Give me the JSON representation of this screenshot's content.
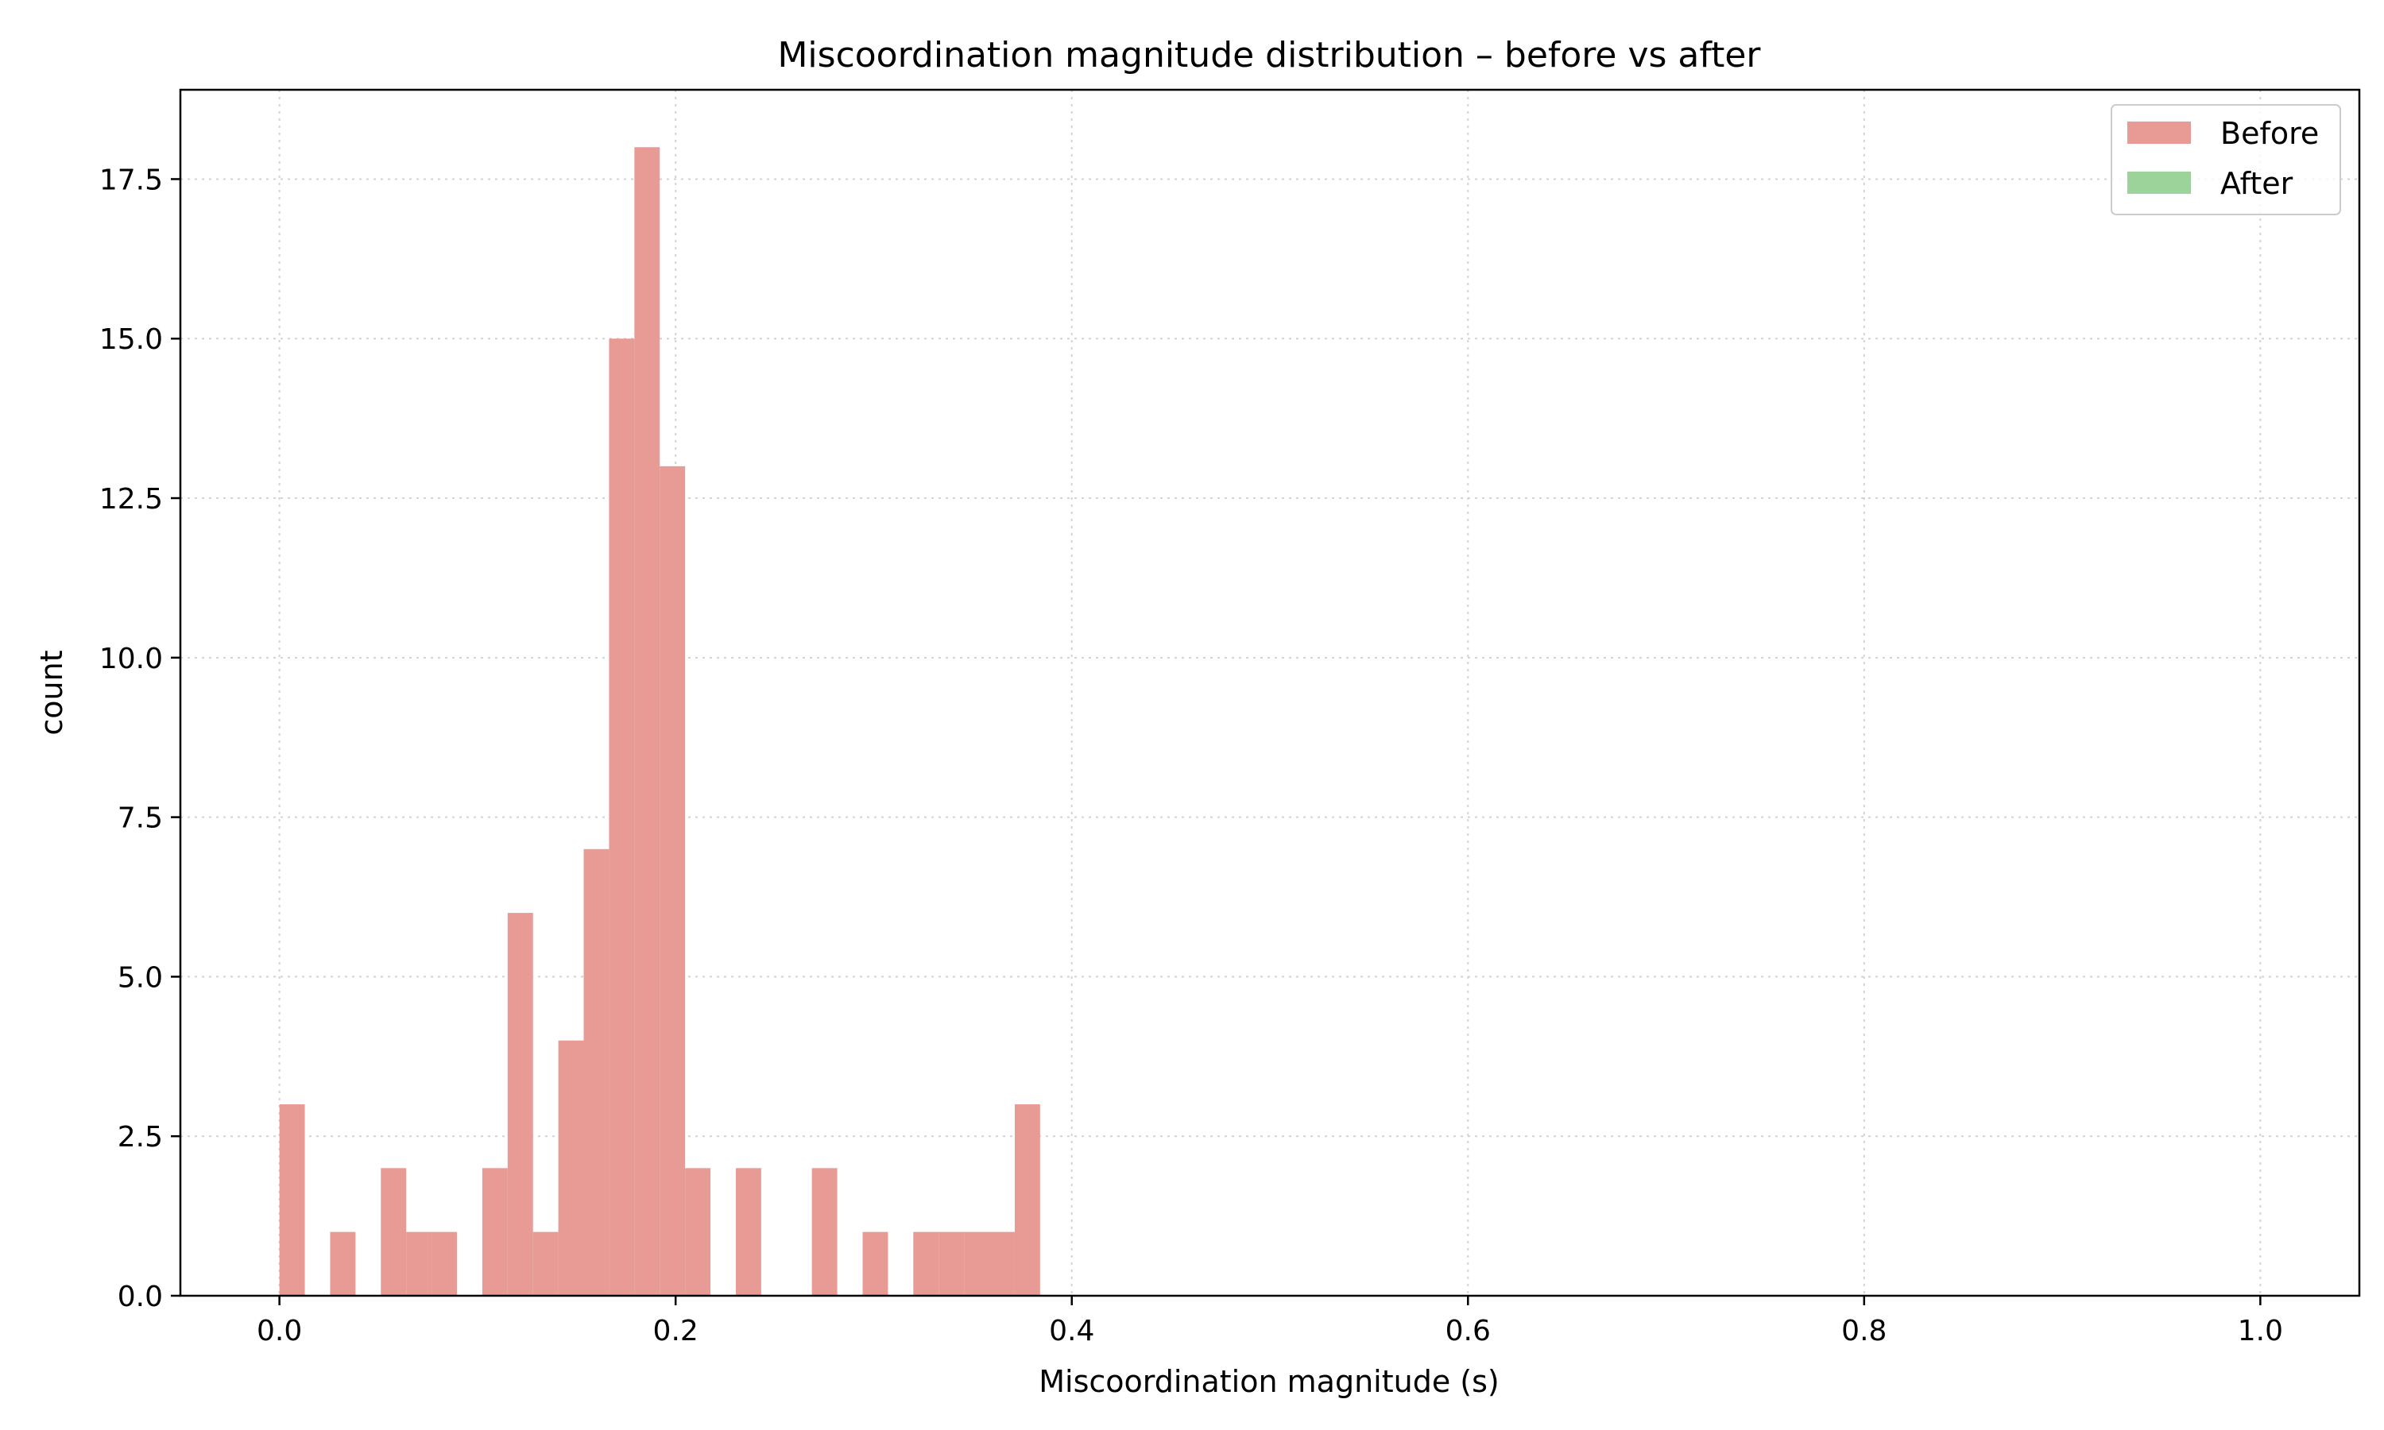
{
  "chart_data": {
    "type": "bar",
    "title": "Miscoordination magnitude distribution – before vs after",
    "xlabel": "Miscoordination magnitude (s)",
    "ylabel": "count",
    "xlim": [
      -0.05,
      1.05
    ],
    "ylim": [
      0,
      18.9
    ],
    "xticks": [
      0.0,
      0.2,
      0.4,
      0.6,
      0.8,
      1.0
    ],
    "xtick_labels": [
      "0.0",
      "0.2",
      "0.4",
      "0.6",
      "0.8",
      "1.0"
    ],
    "yticks": [
      0.0,
      2.5,
      5.0,
      7.5,
      10.0,
      12.5,
      15.0,
      17.5
    ],
    "ytick_labels": [
      "0.0",
      "2.5",
      "5.0",
      "7.5",
      "10.0",
      "12.5",
      "15.0",
      "17.5"
    ],
    "grid": true,
    "legend_position": "top-right",
    "bin_width": 0.0128,
    "series": [
      {
        "name": "Before",
        "color": "#e89a95",
        "bins": [
          {
            "x": 0.0,
            "value": 3
          },
          {
            "x": 0.0256,
            "value": 1
          },
          {
            "x": 0.0512,
            "value": 2
          },
          {
            "x": 0.064,
            "value": 1
          },
          {
            "x": 0.0768,
            "value": 1
          },
          {
            "x": 0.1024,
            "value": 2
          },
          {
            "x": 0.1152,
            "value": 6
          },
          {
            "x": 0.128,
            "value": 1
          },
          {
            "x": 0.1408,
            "value": 4
          },
          {
            "x": 0.1536,
            "value": 7
          },
          {
            "x": 0.1664,
            "value": 15
          },
          {
            "x": 0.1792,
            "value": 18
          },
          {
            "x": 0.192,
            "value": 13
          },
          {
            "x": 0.2048,
            "value": 2
          },
          {
            "x": 0.2304,
            "value": 2
          },
          {
            "x": 0.2688,
            "value": 2
          },
          {
            "x": 0.2944,
            "value": 1
          },
          {
            "x": 0.32,
            "value": 1
          },
          {
            "x": 0.3328,
            "value": 1
          },
          {
            "x": 0.3456,
            "value": 1
          },
          {
            "x": 0.3584,
            "value": 1
          },
          {
            "x": 0.3712,
            "value": 3
          }
        ]
      },
      {
        "name": "After",
        "color": "#9cd39b",
        "bins": []
      }
    ]
  }
}
